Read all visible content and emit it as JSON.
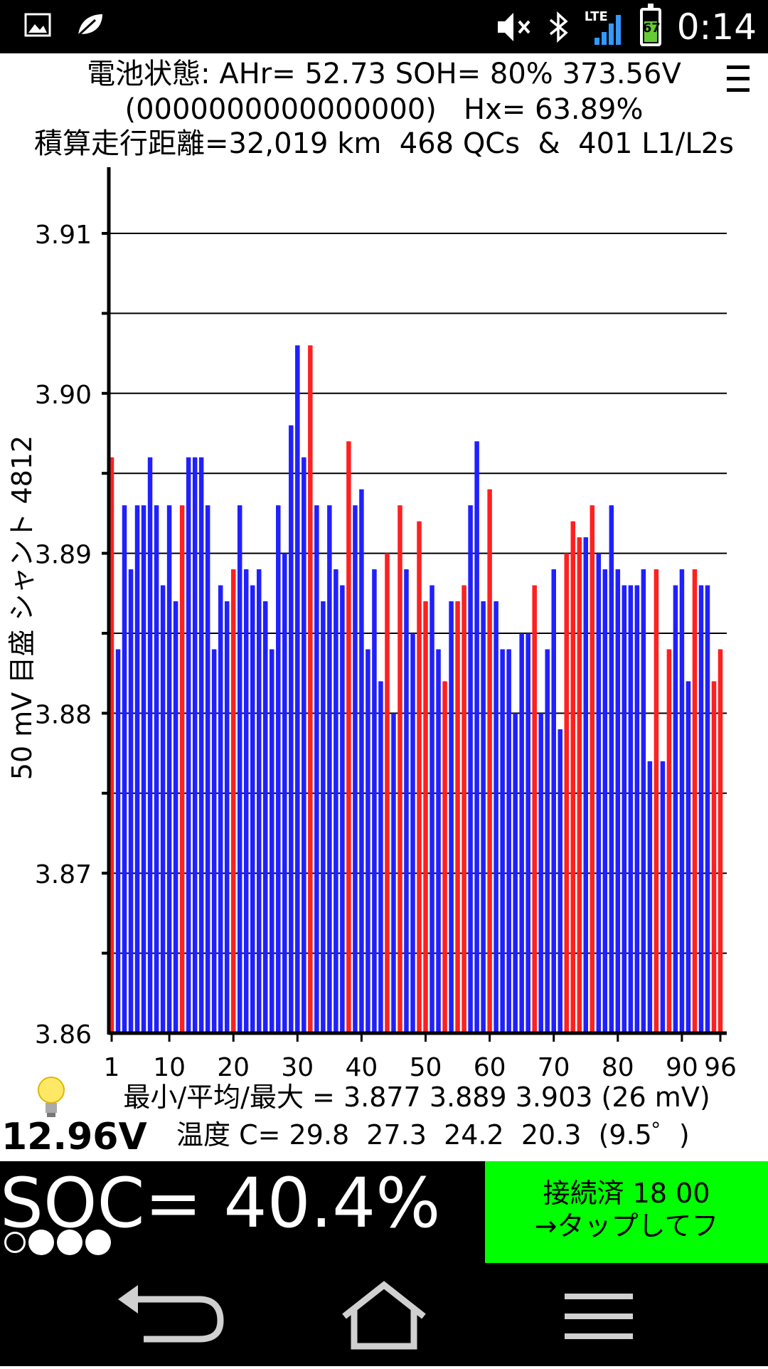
{
  "status_bar": {
    "left_icons": [
      "image-icon",
      "leaf-icon"
    ],
    "right_icons": [
      "mute-icon",
      "bluetooth-icon",
      "lte-signal-icon",
      "battery-icon"
    ],
    "network_label": "LTE",
    "battery_level": "67",
    "time": "0:14"
  },
  "header": {
    "line1": "電池状態: AHr= 52.73 SOH= 80% 373.56V",
    "line2": "(0000000000000000)   Hx= 63.89%",
    "line3": "積算走行距離=32,019 km  468 QCs  &  401 L1/L2s"
  },
  "chart_data": {
    "type": "bar",
    "ylabel": "50 mV 目盛  シャント 4812",
    "ylim": [
      3.86,
      3.915
    ],
    "yticks": [
      "3.86",
      "3.87",
      "3.88",
      "3.89",
      "3.90",
      "3.91"
    ],
    "xticks": [
      "1",
      "10",
      "20",
      "30",
      "40",
      "50",
      "60",
      "70",
      "80",
      "90",
      "96"
    ],
    "grid": true,
    "x": [
      1,
      2,
      3,
      4,
      5,
      6,
      7,
      8,
      9,
      10,
      11,
      12,
      13,
      14,
      15,
      16,
      17,
      18,
      19,
      20,
      21,
      22,
      23,
      24,
      25,
      26,
      27,
      28,
      29,
      30,
      31,
      32,
      33,
      34,
      35,
      36,
      37,
      38,
      39,
      40,
      41,
      42,
      43,
      44,
      45,
      46,
      47,
      48,
      49,
      50,
      51,
      52,
      53,
      54,
      55,
      56,
      57,
      58,
      59,
      60,
      61,
      62,
      63,
      64,
      65,
      66,
      67,
      68,
      69,
      70,
      71,
      72,
      73,
      74,
      75,
      76,
      77,
      78,
      79,
      80,
      81,
      82,
      83,
      84,
      85,
      86,
      87,
      88,
      89,
      90,
      91,
      92,
      93,
      94,
      95,
      96
    ],
    "values": [
      3.896,
      3.884,
      3.893,
      3.889,
      3.893,
      3.893,
      3.896,
      3.893,
      3.888,
      3.893,
      3.887,
      3.893,
      3.896,
      3.896,
      3.896,
      3.893,
      3.884,
      3.888,
      3.887,
      3.889,
      3.893,
      3.889,
      3.888,
      3.889,
      3.887,
      3.884,
      3.893,
      3.89,
      3.898,
      3.903,
      3.896,
      3.903,
      3.893,
      3.887,
      3.893,
      3.889,
      3.888,
      3.897,
      3.893,
      3.894,
      3.884,
      3.889,
      3.882,
      3.89,
      3.88,
      3.893,
      3.889,
      3.885,
      3.892,
      3.887,
      3.888,
      3.884,
      3.882,
      3.887,
      3.887,
      3.888,
      3.893,
      3.897,
      3.887,
      3.894,
      3.887,
      3.884,
      3.884,
      3.88,
      3.885,
      3.885,
      3.888,
      3.88,
      3.884,
      3.889,
      3.879,
      3.89,
      3.892,
      3.891,
      3.891,
      3.893,
      3.89,
      3.889,
      3.893,
      3.889,
      3.888,
      3.888,
      3.888,
      3.889,
      3.877,
      3.889,
      3.877,
      3.884,
      3.888,
      3.889,
      3.882,
      3.889,
      3.888,
      3.888,
      3.882,
      3.884
    ],
    "bar_colors": [
      "#ff2020",
      "#2020ff"
    ],
    "red_bars": [
      1,
      12,
      20,
      32,
      38,
      44,
      46,
      49,
      50,
      53,
      55,
      56,
      60,
      67,
      72,
      73,
      74,
      76,
      86,
      88,
      92,
      95,
      96
    ],
    "stats_line": "最小/平均/最大 = 3.877 3.889 3.903  (26 mV)",
    "temp_line": "温度 C= 29.8  27.3  24.2  20.3  (9.5゜)"
  },
  "footer": {
    "voltage": "12.96V",
    "soc": "SOC= 40.4%",
    "connect_line1": "接続済 18 00",
    "connect_line2": "→タップしてフ"
  },
  "nav": [
    "back-icon",
    "home-icon",
    "menu-icon"
  ]
}
